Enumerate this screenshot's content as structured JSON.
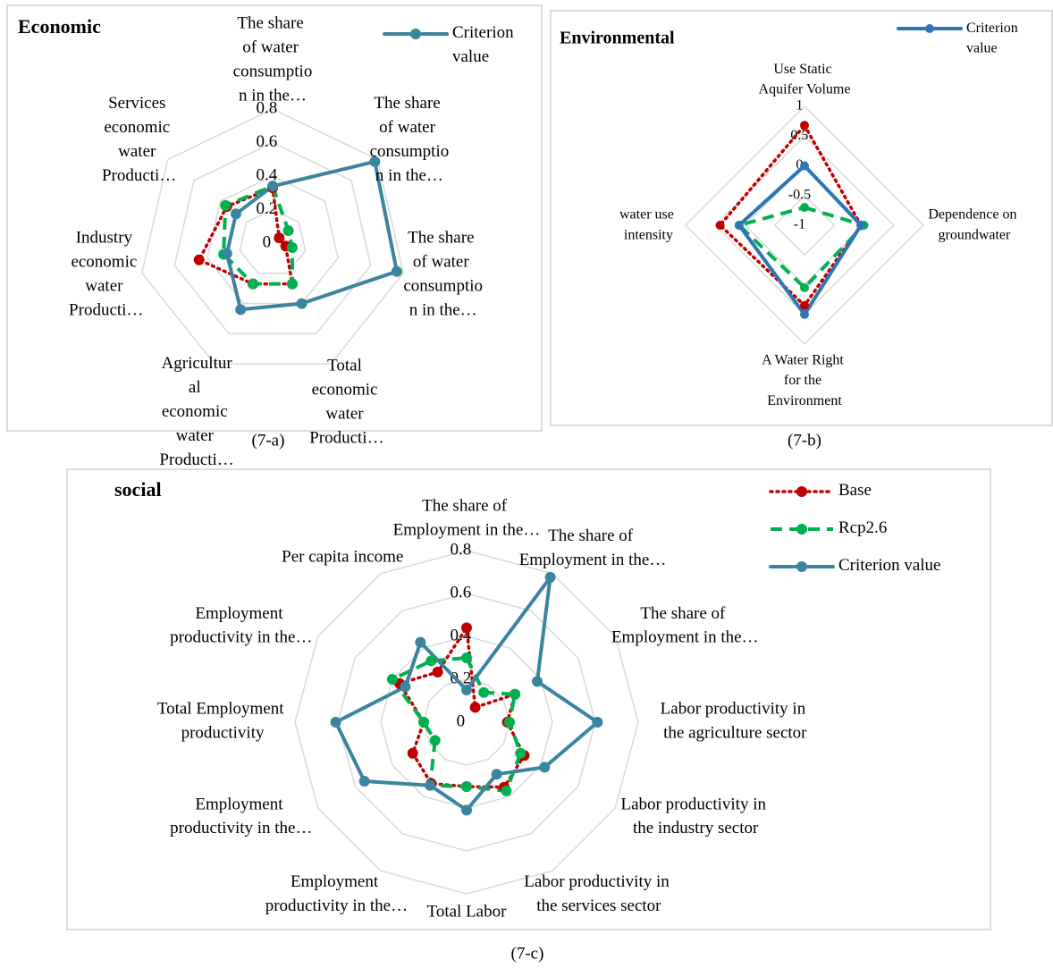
{
  "chart_data": [
    {
      "type": "radar",
      "title": "Economic",
      "caption": "(7-a)",
      "categories": [
        "The share of water consumption in the…",
        "The share of water consumption in the…",
        "The share of water consumption in the…",
        "Total economic water Producti…",
        "Agricultural economic water Producti…",
        "Industry economic water Producti…",
        "Services economic water Producti…"
      ],
      "ylim": [
        0,
        0.8
      ],
      "yticks": [
        0,
        0.2,
        0.4,
        0.6,
        0.8
      ],
      "grid": true,
      "legend": "top-right",
      "series": [
        {
          "color": "#c00000",
          "line_style": "dotted",
          "values": [
            0.33,
            0.05,
            0.08,
            0.27,
            0.27,
            0.45,
            0.35
          ]
        },
        {
          "color": "#00b050",
          "line_style": "dashed",
          "values": [
            0.34,
            0.12,
            0.12,
            0.27,
            0.27,
            0.3,
            0.36
          ]
        },
        {
          "name": "Criterion value",
          "color": "#3b84a0",
          "line_style": "solid",
          "values": [
            0.34,
            0.78,
            0.76,
            0.4,
            0.44,
            0.28,
            0.28
          ]
        }
      ]
    },
    {
      "type": "radar",
      "title": "Environmental",
      "caption": "(7-b)",
      "categories": [
        "Use Static Aquifer Volume",
        "Dependence on groundwater",
        "A Water Right for the Environment",
        "water use intensity"
      ],
      "ylim": [
        -1,
        1
      ],
      "yticks": [
        -1,
        -0.5,
        0,
        0.5,
        1
      ],
      "grid": true,
      "legend": "top-right",
      "series": [
        {
          "color": "#c00000",
          "line_style": "dotted",
          "values": [
            0.68,
            -0.05,
            0.35,
            0.42
          ]
        },
        {
          "color": "#00b050",
          "line_style": "dashed",
          "values": [
            -0.7,
            0,
            0.05,
            0.1
          ]
        },
        {
          "name": "Criterion value",
          "color": "#2e75b6",
          "line_style": "solid",
          "values": [
            0,
            -0.05,
            0.5,
            0.1
          ]
        }
      ]
    },
    {
      "type": "radar",
      "title": "social",
      "caption": "(7-c)",
      "categories": [
        "The share of Employment in the…",
        "The share of Employment in the…",
        "The share of Employment in the…",
        "Labor productivity in the agriculture sector",
        "Labor productivity in the industry sector",
        "Labor productivity in the services sector",
        "Total Labor",
        "Employment productivity in the…",
        "Employment productivity in the…",
        "Total Employment productivity",
        "Employment productivity in the…",
        "Per capita income"
      ],
      "ylim": [
        0,
        0.8
      ],
      "yticks": [
        0,
        0.2,
        0.4,
        0.6,
        0.8
      ],
      "grid": true,
      "legend": "top-right",
      "series": [
        {
          "name": "Base",
          "color": "#c00000",
          "line_style": "dotted",
          "values": [
            0.44,
            0.08,
            0.26,
            0.19,
            0.31,
            0.35,
            0.3,
            0.33,
            0.29,
            0.2,
            0.36,
            0.27
          ]
        },
        {
          "name": "Rcp2.6",
          "color": "#00b050",
          "line_style": "dashed",
          "values": [
            0.3,
            0.16,
            0.26,
            0.2,
            0.29,
            0.37,
            0.3,
            0.34,
            0.17,
            0.2,
            0.4,
            0.33
          ]
        },
        {
          "name": "Criterion value",
          "color": "#3b84a0",
          "line_style": "solid",
          "values": [
            0.15,
            0.78,
            0.38,
            0.61,
            0.42,
            0.28,
            0.41,
            0.34,
            0.55,
            0.61,
            0.33,
            0.43
          ]
        }
      ]
    }
  ]
}
